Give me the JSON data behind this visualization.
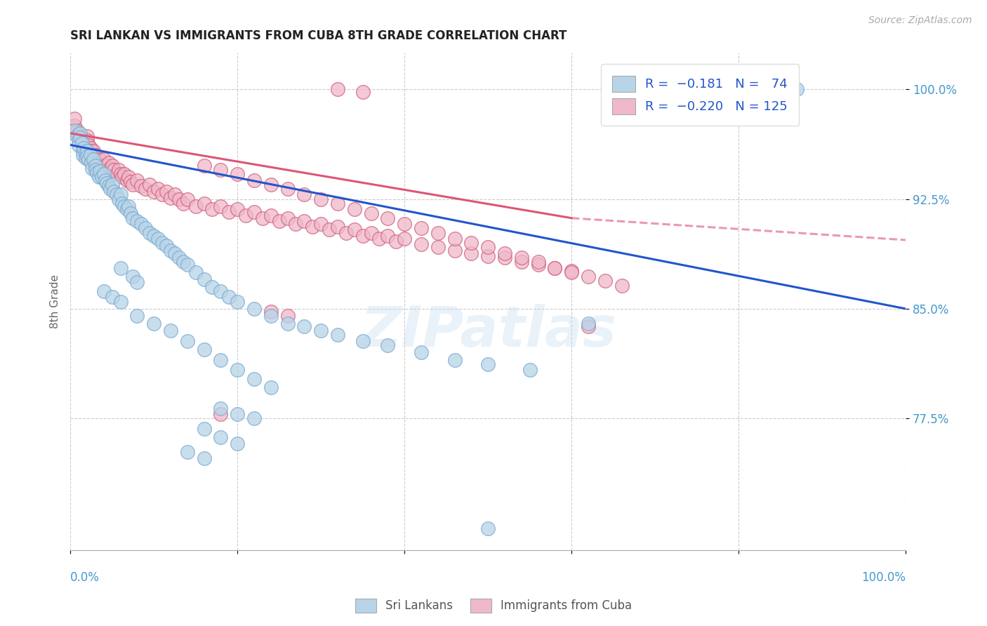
{
  "title": "SRI LANKAN VS IMMIGRANTS FROM CUBA 8TH GRADE CORRELATION CHART",
  "source": "Source: ZipAtlas.com",
  "ylabel": "8th Grade",
  "ytick_vals": [
    0.775,
    0.85,
    0.925,
    1.0
  ],
  "ytick_labels": [
    "77.5%",
    "85.0%",
    "92.5%",
    "100.0%"
  ],
  "xlim": [
    0.0,
    1.0
  ],
  "ylim": [
    0.685,
    1.025
  ],
  "watermark": "ZIPatlas",
  "sri_lankans": {
    "color": "#b8d4e8",
    "edge_color": "#7aaad0",
    "points": [
      [
        0.005,
        0.972
      ],
      [
        0.008,
        0.968
      ],
      [
        0.01,
        0.965
      ],
      [
        0.01,
        0.962
      ],
      [
        0.012,
        0.97
      ],
      [
        0.012,
        0.967
      ],
      [
        0.014,
        0.963
      ],
      [
        0.015,
        0.958
      ],
      [
        0.015,
        0.955
      ],
      [
        0.016,
        0.96
      ],
      [
        0.018,
        0.956
      ],
      [
        0.018,
        0.953
      ],
      [
        0.02,
        0.958
      ],
      [
        0.02,
        0.954
      ],
      [
        0.022,
        0.952
      ],
      [
        0.024,
        0.955
      ],
      [
        0.025,
        0.95
      ],
      [
        0.026,
        0.946
      ],
      [
        0.028,
        0.952
      ],
      [
        0.03,
        0.948
      ],
      [
        0.03,
        0.945
      ],
      [
        0.032,
        0.943
      ],
      [
        0.034,
        0.94
      ],
      [
        0.035,
        0.944
      ],
      [
        0.038,
        0.94
      ],
      [
        0.04,
        0.942
      ],
      [
        0.042,
        0.938
      ],
      [
        0.044,
        0.936
      ],
      [
        0.046,
        0.934
      ],
      [
        0.048,
        0.932
      ],
      [
        0.05,
        0.935
      ],
      [
        0.052,
        0.93
      ],
      [
        0.055,
        0.928
      ],
      [
        0.058,
        0.925
      ],
      [
        0.06,
        0.928
      ],
      [
        0.062,
        0.922
      ],
      [
        0.065,
        0.92
      ],
      [
        0.068,
        0.918
      ],
      [
        0.07,
        0.92
      ],
      [
        0.072,
        0.915
      ],
      [
        0.075,
        0.912
      ],
      [
        0.08,
        0.91
      ],
      [
        0.085,
        0.908
      ],
      [
        0.09,
        0.905
      ],
      [
        0.095,
        0.902
      ],
      [
        0.1,
        0.9
      ],
      [
        0.105,
        0.898
      ],
      [
        0.11,
        0.895
      ],
      [
        0.115,
        0.893
      ],
      [
        0.12,
        0.89
      ],
      [
        0.125,
        0.888
      ],
      [
        0.13,
        0.885
      ],
      [
        0.135,
        0.882
      ],
      [
        0.14,
        0.88
      ],
      [
        0.15,
        0.875
      ],
      [
        0.16,
        0.87
      ],
      [
        0.17,
        0.865
      ],
      [
        0.18,
        0.862
      ],
      [
        0.19,
        0.858
      ],
      [
        0.2,
        0.855
      ],
      [
        0.22,
        0.85
      ],
      [
        0.24,
        0.845
      ],
      [
        0.26,
        0.84
      ],
      [
        0.28,
        0.838
      ],
      [
        0.3,
        0.835
      ],
      [
        0.32,
        0.832
      ],
      [
        0.35,
        0.828
      ],
      [
        0.38,
        0.825
      ],
      [
        0.42,
        0.82
      ],
      [
        0.46,
        0.815
      ],
      [
        0.5,
        0.812
      ],
      [
        0.55,
        0.808
      ],
      [
        0.62,
        0.84
      ],
      [
        0.06,
        0.878
      ],
      [
        0.075,
        0.872
      ],
      [
        0.08,
        0.868
      ],
      [
        0.04,
        0.862
      ],
      [
        0.05,
        0.858
      ],
      [
        0.06,
        0.855
      ],
      [
        0.08,
        0.845
      ],
      [
        0.1,
        0.84
      ],
      [
        0.12,
        0.835
      ],
      [
        0.14,
        0.828
      ],
      [
        0.16,
        0.822
      ],
      [
        0.18,
        0.815
      ],
      [
        0.2,
        0.808
      ],
      [
        0.22,
        0.802
      ],
      [
        0.24,
        0.796
      ],
      [
        0.18,
        0.782
      ],
      [
        0.2,
        0.778
      ],
      [
        0.22,
        0.775
      ],
      [
        0.16,
        0.768
      ],
      [
        0.18,
        0.762
      ],
      [
        0.2,
        0.758
      ],
      [
        0.14,
        0.752
      ],
      [
        0.16,
        0.748
      ],
      [
        0.5,
        0.7
      ],
      [
        0.82,
        1.0
      ],
      [
        0.87,
        1.0
      ],
      [
        0.66,
        1.0
      ]
    ]
  },
  "cuba_immigrants": {
    "color": "#f0b8c8",
    "edge_color": "#d06080",
    "points": [
      [
        0.005,
        0.975
      ],
      [
        0.008,
        0.972
      ],
      [
        0.01,
        0.97
      ],
      [
        0.012,
        0.968
      ],
      [
        0.014,
        0.965
      ],
      [
        0.015,
        0.963
      ],
      [
        0.016,
        0.96
      ],
      [
        0.018,
        0.958
      ],
      [
        0.02,
        0.968
      ],
      [
        0.02,
        0.965
      ],
      [
        0.022,
        0.962
      ],
      [
        0.024,
        0.96
      ],
      [
        0.025,
        0.958
      ],
      [
        0.026,
        0.955
      ],
      [
        0.028,
        0.958
      ],
      [
        0.03,
        0.955
      ],
      [
        0.03,
        0.952
      ],
      [
        0.032,
        0.95
      ],
      [
        0.034,
        0.948
      ],
      [
        0.035,
        0.952
      ],
      [
        0.038,
        0.948
      ],
      [
        0.04,
        0.952
      ],
      [
        0.042,
        0.948
      ],
      [
        0.044,
        0.945
      ],
      [
        0.046,
        0.95
      ],
      [
        0.048,
        0.946
      ],
      [
        0.05,
        0.948
      ],
      [
        0.052,
        0.945
      ],
      [
        0.055,
        0.942
      ],
      [
        0.058,
        0.945
      ],
      [
        0.06,
        0.942
      ],
      [
        0.062,
        0.94
      ],
      [
        0.065,
        0.942
      ],
      [
        0.068,
        0.938
      ],
      [
        0.07,
        0.94
      ],
      [
        0.072,
        0.937
      ],
      [
        0.075,
        0.935
      ],
      [
        0.08,
        0.938
      ],
      [
        0.085,
        0.934
      ],
      [
        0.09,
        0.932
      ],
      [
        0.095,
        0.935
      ],
      [
        0.1,
        0.93
      ],
      [
        0.105,
        0.932
      ],
      [
        0.11,
        0.928
      ],
      [
        0.115,
        0.93
      ],
      [
        0.12,
        0.926
      ],
      [
        0.125,
        0.928
      ],
      [
        0.13,
        0.925
      ],
      [
        0.135,
        0.922
      ],
      [
        0.14,
        0.925
      ],
      [
        0.15,
        0.92
      ],
      [
        0.16,
        0.922
      ],
      [
        0.17,
        0.918
      ],
      [
        0.18,
        0.92
      ],
      [
        0.19,
        0.916
      ],
      [
        0.2,
        0.918
      ],
      [
        0.21,
        0.914
      ],
      [
        0.22,
        0.916
      ],
      [
        0.23,
        0.912
      ],
      [
        0.24,
        0.914
      ],
      [
        0.25,
        0.91
      ],
      [
        0.26,
        0.912
      ],
      [
        0.27,
        0.908
      ],
      [
        0.28,
        0.91
      ],
      [
        0.29,
        0.906
      ],
      [
        0.3,
        0.908
      ],
      [
        0.31,
        0.904
      ],
      [
        0.32,
        0.906
      ],
      [
        0.33,
        0.902
      ],
      [
        0.34,
        0.904
      ],
      [
        0.35,
        0.9
      ],
      [
        0.36,
        0.902
      ],
      [
        0.37,
        0.898
      ],
      [
        0.38,
        0.9
      ],
      [
        0.39,
        0.896
      ],
      [
        0.4,
        0.898
      ],
      [
        0.42,
        0.894
      ],
      [
        0.44,
        0.892
      ],
      [
        0.46,
        0.89
      ],
      [
        0.48,
        0.888
      ],
      [
        0.5,
        0.886
      ],
      [
        0.52,
        0.885
      ],
      [
        0.54,
        0.882
      ],
      [
        0.56,
        0.88
      ],
      [
        0.58,
        0.878
      ],
      [
        0.6,
        0.876
      ],
      [
        0.16,
        0.948
      ],
      [
        0.18,
        0.945
      ],
      [
        0.2,
        0.942
      ],
      [
        0.22,
        0.938
      ],
      [
        0.24,
        0.935
      ],
      [
        0.26,
        0.932
      ],
      [
        0.28,
        0.928
      ],
      [
        0.3,
        0.925
      ],
      [
        0.32,
        0.922
      ],
      [
        0.34,
        0.918
      ],
      [
        0.36,
        0.915
      ],
      [
        0.38,
        0.912
      ],
      [
        0.4,
        0.908
      ],
      [
        0.42,
        0.905
      ],
      [
        0.44,
        0.902
      ],
      [
        0.46,
        0.898
      ],
      [
        0.48,
        0.895
      ],
      [
        0.5,
        0.892
      ],
      [
        0.52,
        0.888
      ],
      [
        0.54,
        0.885
      ],
      [
        0.56,
        0.882
      ],
      [
        0.58,
        0.878
      ],
      [
        0.6,
        0.875
      ],
      [
        0.62,
        0.872
      ],
      [
        0.64,
        0.869
      ],
      [
        0.66,
        0.866
      ],
      [
        0.24,
        0.848
      ],
      [
        0.26,
        0.845
      ],
      [
        0.62,
        0.838
      ],
      [
        0.18,
        0.778
      ],
      [
        0.005,
        0.98
      ],
      [
        0.32,
        1.0
      ],
      [
        0.35,
        0.998
      ]
    ]
  },
  "blue_line": {
    "x0": 0.0,
    "y0": 0.962,
    "x1": 1.0,
    "y1": 0.85
  },
  "pink_solid_line": {
    "x0": 0.0,
    "y0": 0.97,
    "x1": 0.6,
    "y1": 0.912
  },
  "pink_dashed_line": {
    "x0": 0.6,
    "y0": 0.912,
    "x1": 1.0,
    "y1": 0.897
  },
  "background_color": "#ffffff",
  "title_color": "#222222",
  "tick_color": "#4499cc",
  "grid_color": "#cccccc"
}
